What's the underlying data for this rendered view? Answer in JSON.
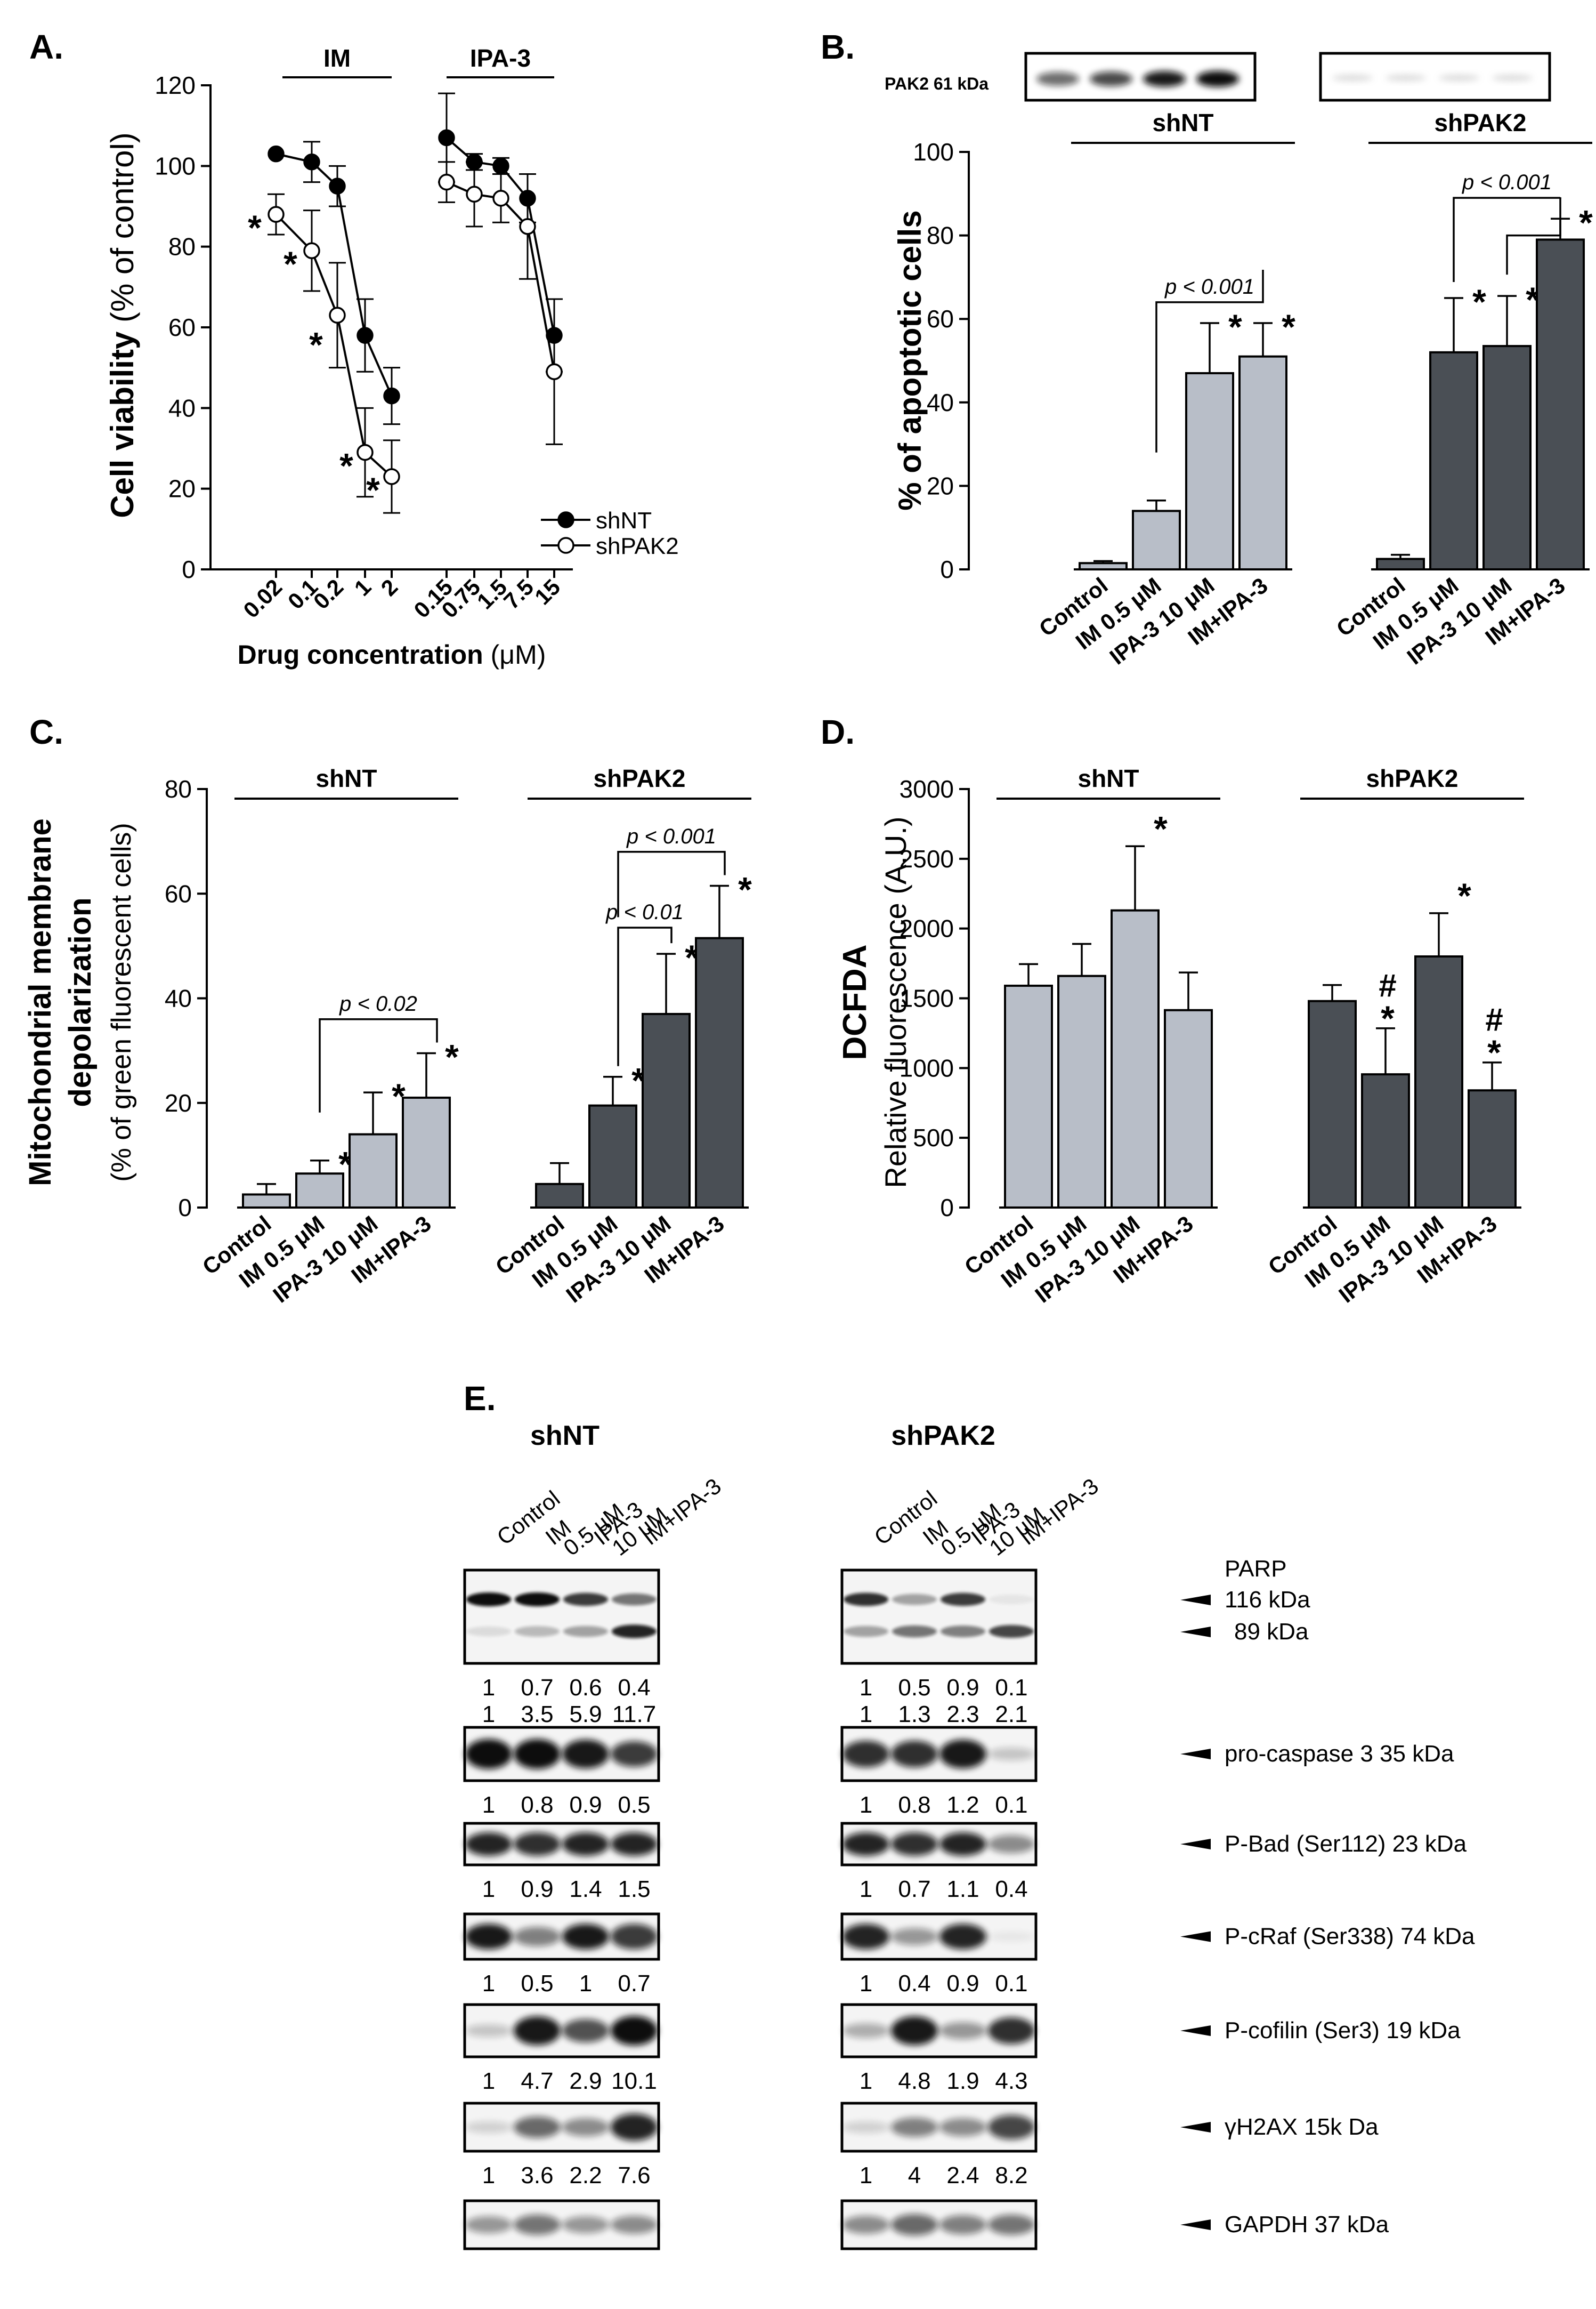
{
  "colors": {
    "shNT": "#b8bec8",
    "shPAK2": "#4a4f55",
    "ink": "#000000"
  },
  "panelA": {
    "letter": "A.",
    "group_labels": [
      "IM",
      "IPA-3"
    ],
    "ylabel_bold": "Cell viability",
    "ylabel_rest": "(% of control)",
    "xlabel_bold": "Drug concentration",
    "xlabel_rest": "(μM)",
    "legend": [
      "shNT",
      "shPAK2"
    ],
    "chart_data": {
      "type": "line",
      "ylim": [
        0,
        120
      ],
      "yticks": [
        0,
        20,
        40,
        60,
        80,
        100,
        120
      ],
      "groups": [
        {
          "label": "IM",
          "x": [
            "0.02",
            "0.1",
            "0.2",
            "1",
            "2"
          ],
          "series": [
            {
              "name": "shNT",
              "values": [
                103,
                101,
                95,
                58,
                43
              ],
              "err": [
                0,
                5,
                5,
                9,
                7
              ]
            },
            {
              "name": "shPAK2",
              "values": [
                88,
                79,
                63,
                29,
                23
              ],
              "err": [
                5,
                10,
                13,
                11,
                9
              ]
            }
          ],
          "stars": [
            "*",
            "*",
            "*",
            "*",
            "*"
          ]
        },
        {
          "label": "IPA-3",
          "x": [
            "0.15",
            "0.75",
            "1.5",
            "7.5",
            "15"
          ],
          "series": [
            {
              "name": "shNT",
              "values": [
                107,
                101,
                100,
                92,
                58
              ],
              "err": [
                11,
                2,
                2,
                6,
                9
              ]
            },
            {
              "name": "shPAK2",
              "values": [
                96,
                93,
                92,
                85,
                49
              ],
              "err": [
                5,
                8,
                6,
                13,
                18
              ]
            }
          ]
        }
      ]
    }
  },
  "panelB": {
    "letter": "B.",
    "blot_label": "PAK2 61 kDa",
    "ylabel": "% of apoptotic cells",
    "groups": [
      "shNT",
      "shPAK2"
    ],
    "brackets": [
      "p < 0.001",
      "p < 0.001"
    ],
    "chart_data": {
      "type": "bar",
      "ylim": [
        0,
        100
      ],
      "yticks": [
        0,
        20,
        40,
        60,
        80,
        100
      ],
      "categories": [
        "Control",
        "IM 0.5 μM",
        "IPA-3 10 μM",
        "IM+IPA-3"
      ],
      "series": [
        {
          "name": "shNT",
          "values": [
            1.5,
            14,
            47,
            51
          ],
          "err": [
            0.5,
            2.5,
            12,
            8
          ],
          "marks": [
            "",
            "",
            "*",
            "*"
          ]
        },
        {
          "name": "shPAK2",
          "values": [
            2.5,
            52,
            53.5,
            79
          ],
          "err": [
            1,
            13,
            12,
            5
          ],
          "marks": [
            "",
            "*",
            "*",
            "*"
          ]
        }
      ]
    }
  },
  "panelC": {
    "letter": "C.",
    "ylabel_bold_1": "Mitochondrial membrane",
    "ylabel_bold_2": "depolarization",
    "ylabel_rest": "(% of green fluorescent cells)",
    "groups": [
      "shNT",
      "shPAK2"
    ],
    "brackets": [
      "p < 0.02",
      "p < 0.01",
      "p < 0.001"
    ],
    "chart_data": {
      "type": "bar",
      "ylim": [
        0,
        80
      ],
      "yticks": [
        0,
        20,
        40,
        60,
        80
      ],
      "categories": [
        "Control",
        "IM 0.5 μM",
        "IPA-3 10 μM",
        "IM+IPA-3"
      ],
      "series": [
        {
          "name": "shNT",
          "values": [
            2.5,
            6.5,
            14,
            21
          ],
          "err": [
            2,
            2.5,
            8,
            8.5
          ],
          "marks": [
            "",
            "*",
            "*",
            "*"
          ]
        },
        {
          "name": "shPAK2",
          "values": [
            4.5,
            19.5,
            37,
            51.5
          ],
          "err": [
            4,
            5.5,
            11.5,
            10
          ],
          "marks": [
            "",
            "*",
            "*",
            "*"
          ]
        }
      ]
    }
  },
  "panelD": {
    "letter": "D.",
    "ylabel_bold": "DCFDA",
    "ylabel_rest": "Relative fluorescence (A.U.)",
    "groups": [
      "shNT",
      "shPAK2"
    ],
    "chart_data": {
      "type": "bar",
      "ylim": [
        0,
        3000
      ],
      "yticks": [
        0,
        500,
        1000,
        1500,
        2000,
        2500,
        3000
      ],
      "categories": [
        "Control",
        "IM 0.5 μM",
        "IPA-3 10 μM",
        "IM+IPA-3"
      ],
      "series": [
        {
          "name": "shNT",
          "values": [
            1590,
            1660,
            2130,
            1415
          ],
          "err": [
            155,
            230,
            460,
            270
          ],
          "marks": [
            "",
            "",
            "*",
            ""
          ]
        },
        {
          "name": "shPAK2",
          "values": [
            1480,
            955,
            1800,
            840
          ],
          "err": [
            115,
            330,
            310,
            200
          ],
          "marks": [
            "",
            "#*",
            "*",
            "#*"
          ]
        }
      ]
    }
  },
  "panelE": {
    "letter": "E.",
    "groups": [
      "shNT",
      "shPAK2"
    ],
    "lanes": [
      {
        "l1": "Control",
        "l2": ""
      },
      {
        "l1": "IM",
        "l2": "0.5 μM"
      },
      {
        "l1": "IPA-3",
        "l2": "10 μM"
      },
      {
        "l1": "IM+IPA-3",
        "l2": ""
      }
    ],
    "parp_title": "PARP",
    "blots": [
      {
        "name": "parp",
        "labels": [
          "116 kDa",
          "89 kDa"
        ],
        "quant": [
          [
            [
              "1",
              "0.7",
              "0.6",
              "0.4"
            ],
            [
              "1",
              "3.5",
              "5.9",
              "11.7"
            ]
          ],
          [
            [
              "1",
              "0.5",
              "0.9",
              "0.1"
            ],
            [
              "1",
              "1.3",
              "2.3",
              "2.1"
            ]
          ]
        ]
      },
      {
        "name": "pro-caspase-3",
        "labels": [
          "pro-caspase 3  35 kDa"
        ],
        "quant": [
          [
            [
              "1",
              "0.8",
              "0.9",
              "0.5"
            ]
          ],
          [
            [
              "1",
              "0.8",
              "1.2",
              "0.1"
            ]
          ]
        ]
      },
      {
        "name": "p-bad",
        "labels": [
          "P-Bad (Ser112) 23 kDa"
        ],
        "quant": [
          [
            [
              "1",
              "0.9",
              "1.4",
              "1.5"
            ]
          ],
          [
            [
              "1",
              "0.7",
              "1.1",
              "0.4"
            ]
          ]
        ]
      },
      {
        "name": "p-craf",
        "labels": [
          "P-cRaf (Ser338) 74 kDa"
        ],
        "quant": [
          [
            [
              "1",
              "0.5",
              "1",
              "0.7"
            ]
          ],
          [
            [
              "1",
              "0.4",
              "0.9",
              "0.1"
            ]
          ]
        ]
      },
      {
        "name": "p-cofilin",
        "labels": [
          "P-cofilin (Ser3) 19 kDa"
        ],
        "quant": [
          [
            [
              "1",
              "4.7",
              "2.9",
              "10.1"
            ]
          ],
          [
            [
              "1",
              "4.8",
              "1.9",
              "4.3"
            ]
          ]
        ]
      },
      {
        "name": "gamma-h2ax",
        "labels": [
          "γH2AX 15k Da"
        ],
        "quant": [
          [
            [
              "1",
              "3.6",
              "2.2",
              "7.6"
            ]
          ],
          [
            [
              "1",
              "4",
              "2.4",
              "8.2"
            ]
          ]
        ]
      },
      {
        "name": "gapdh",
        "labels": [
          "GAPDH 37 kDa"
        ],
        "quant": []
      }
    ]
  }
}
